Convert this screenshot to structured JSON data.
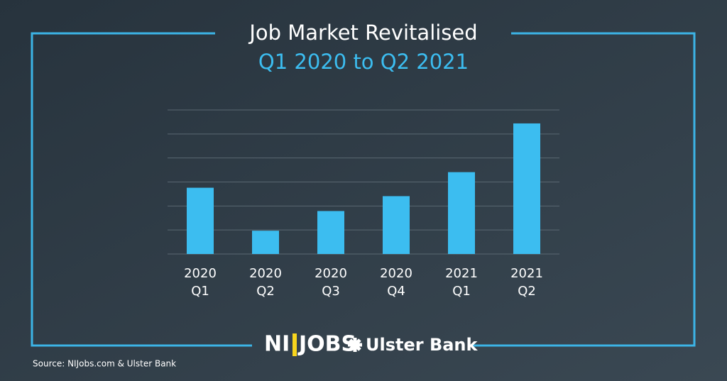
{
  "chart_data": {
    "type": "bar",
    "title": "Job Market Revitalised",
    "subtitle": "Q1 2020 to Q2 2021",
    "categories": [
      [
        "2020",
        "Q1"
      ],
      [
        "2020",
        "Q2"
      ],
      [
        "2020",
        "Q3"
      ],
      [
        "2020",
        "Q4"
      ],
      [
        "2021",
        "Q1"
      ],
      [
        "2021",
        "Q2"
      ]
    ],
    "values": [
      2.76,
      0.97,
      1.79,
      2.41,
      3.41,
      5.44
    ],
    "color": "#3cbdf0",
    "ylim": [
      0,
      6
    ],
    "ygrid": [
      0,
      1,
      2,
      3,
      4,
      5,
      6
    ],
    "grid": true,
    "logos": [
      "NI",
      "JOBS",
      "Ulster Bank"
    ],
    "source": "Source: NIJobs.com & Ulster Bank"
  }
}
